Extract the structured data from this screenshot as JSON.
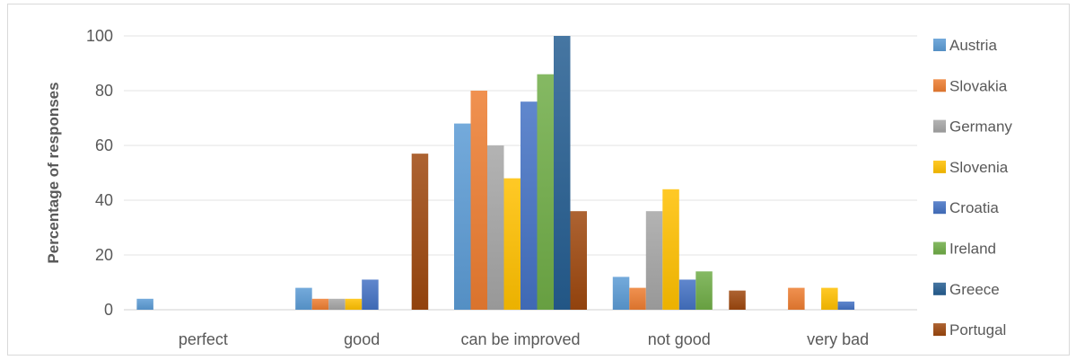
{
  "chart_data": {
    "type": "bar",
    "ylabel": "Percentage of responses",
    "xlabel": "",
    "title": "",
    "ylim": [
      0,
      100
    ],
    "yticks": [
      0,
      20,
      40,
      60,
      80,
      100
    ],
    "grid": true,
    "legend_position": "right",
    "categories": [
      "perfect",
      "good",
      "can be improved",
      "not good",
      "very bad"
    ],
    "series": [
      {
        "name": "Austria",
        "color": "#5b9bd5",
        "values": [
          4,
          8,
          68,
          12,
          0
        ]
      },
      {
        "name": "Slovakia",
        "color": "#ed7d31",
        "values": [
          0,
          4,
          80,
          8,
          8
        ]
      },
      {
        "name": "Germany",
        "color": "#a5a5a5",
        "values": [
          0,
          4,
          60,
          36,
          0
        ]
      },
      {
        "name": "Slovenia",
        "color": "#ffc000",
        "values": [
          0,
          4,
          48,
          44,
          8
        ]
      },
      {
        "name": "Croatia",
        "color": "#4472c4",
        "values": [
          0,
          11,
          76,
          11,
          3
        ]
      },
      {
        "name": "Ireland",
        "color": "#70ad47",
        "values": [
          0,
          0,
          86,
          14,
          0
        ]
      },
      {
        "name": "Greece",
        "color": "#255e91",
        "values": [
          0,
          0,
          100,
          0,
          0
        ]
      },
      {
        "name": "Portugal",
        "color": "#9e480e",
        "values": [
          0,
          57,
          36,
          7,
          0
        ]
      }
    ]
  }
}
